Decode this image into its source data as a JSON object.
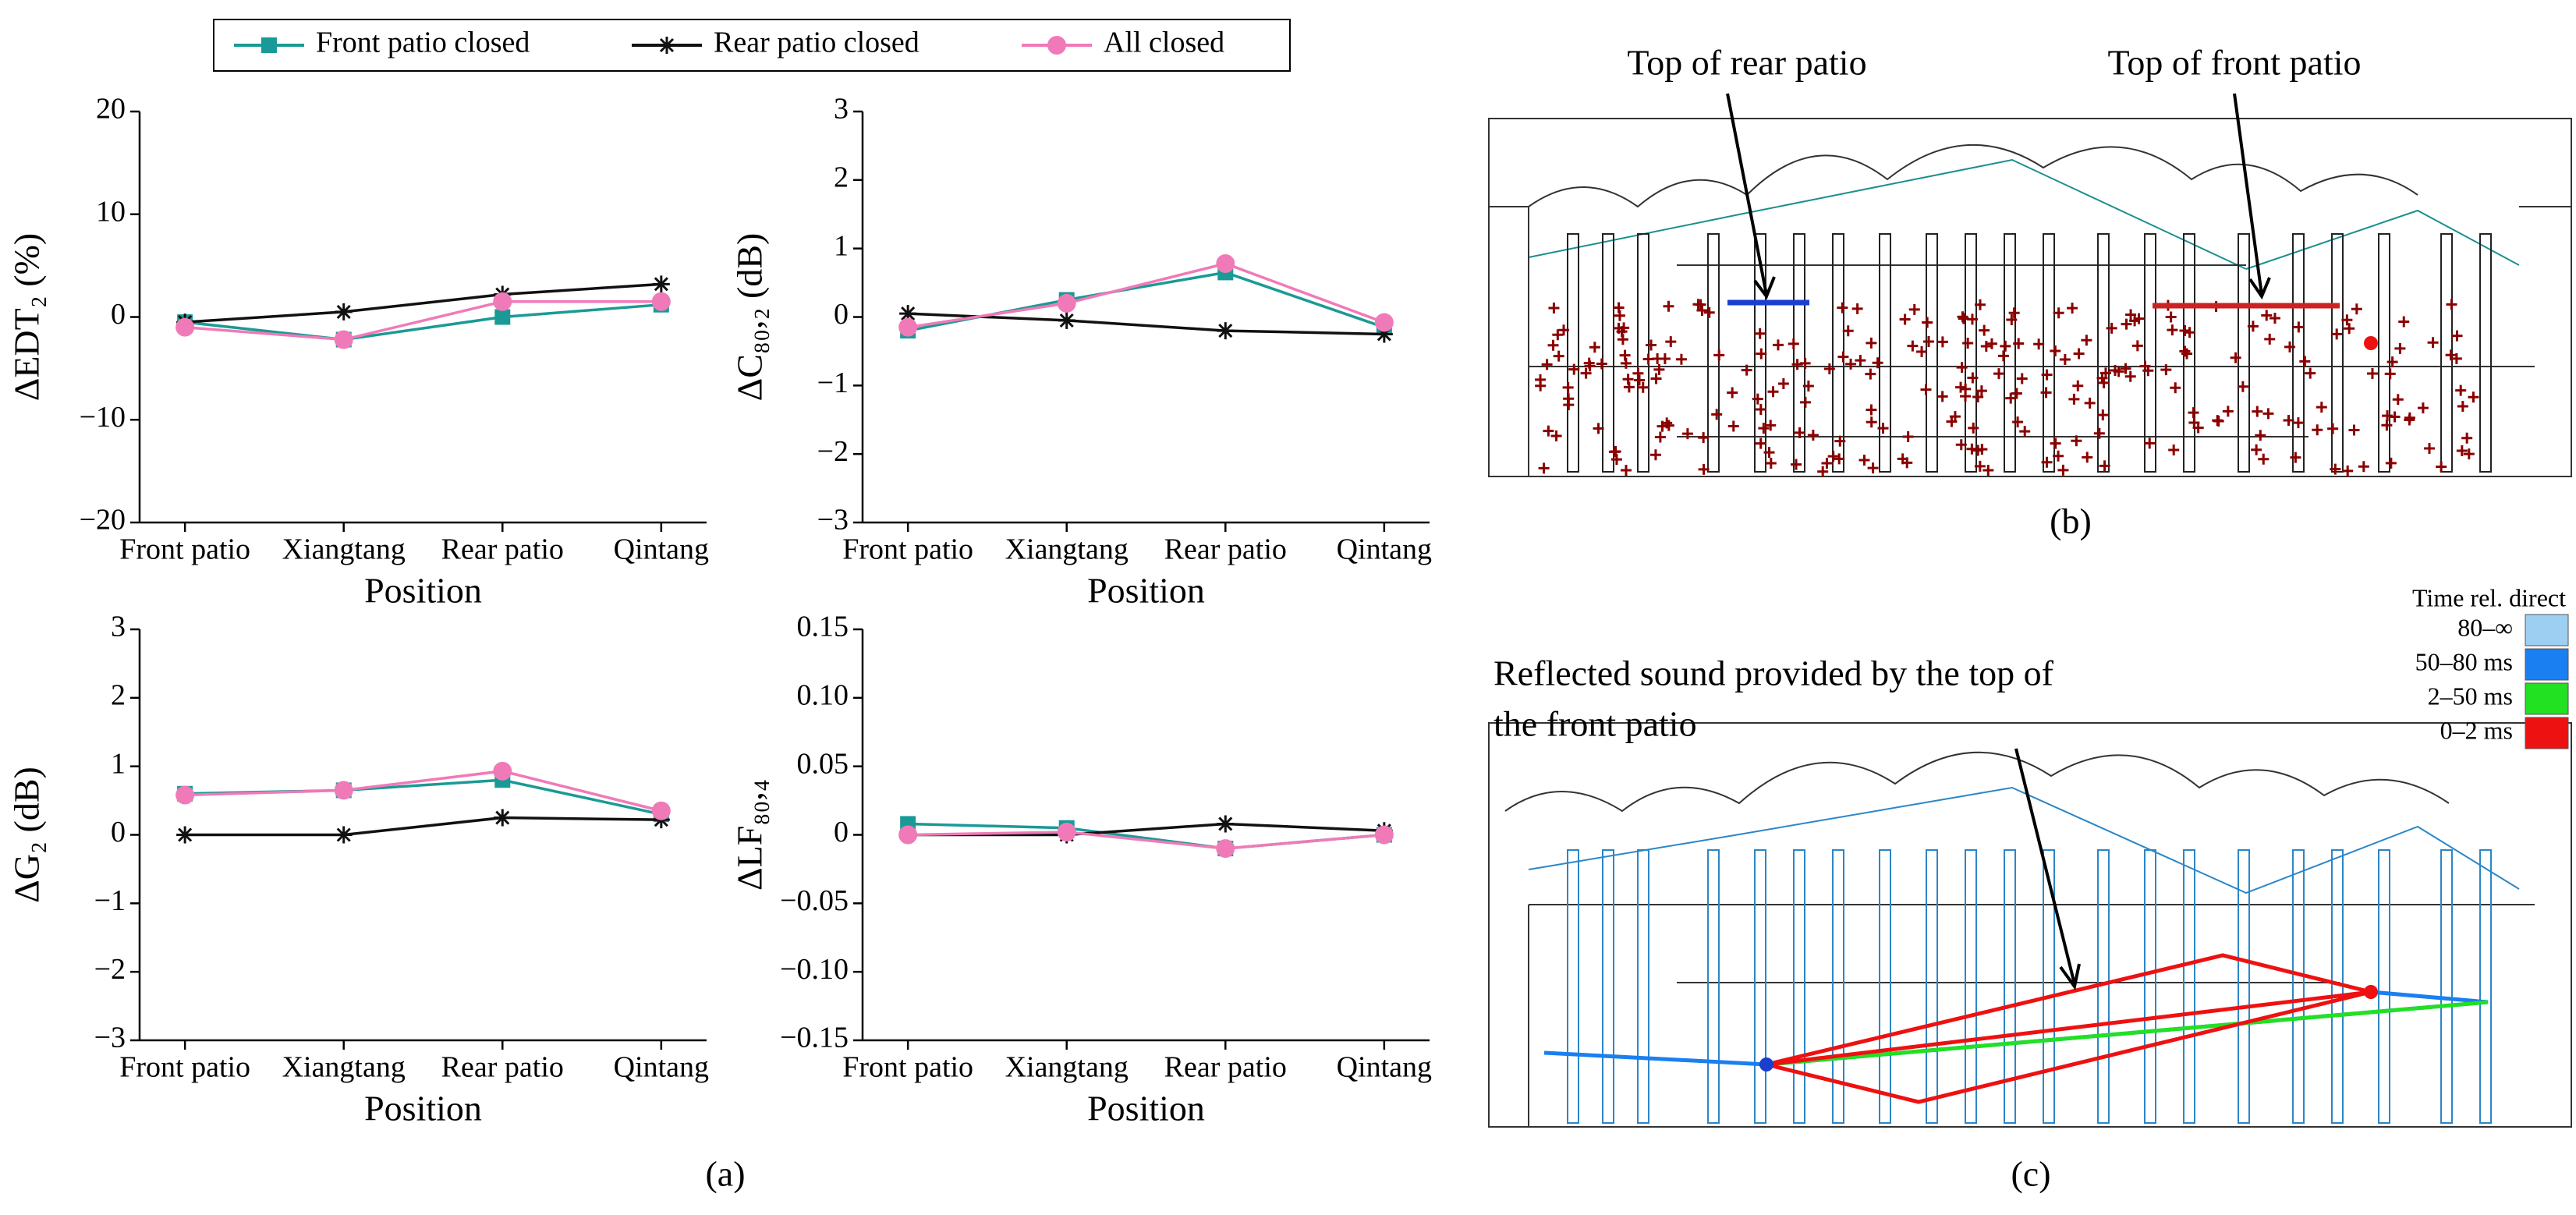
{
  "chart_data": [
    {
      "type": "line",
      "categories": [
        "Front patio",
        "Xiangtang",
        "Rear patio",
        "Qintang"
      ],
      "xlabel": "Position",
      "ylabel": "ΔEDT₂ (%)",
      "ylim": [
        -20,
        20
      ],
      "yticks": [
        {
          "value": -20,
          "label": "−20"
        },
        {
          "value": -10,
          "label": "−10"
        },
        0,
        10,
        20
      ],
      "series": [
        {
          "name": "Front patio closed",
          "color": "#1a9a96",
          "marker": "square",
          "values": [
            -0.5,
            -2.2,
            0,
            1.2
          ]
        },
        {
          "name": "Rear patio closed",
          "color": "#111111",
          "marker": "asterisk",
          "values": [
            -0.5,
            0.5,
            2.2,
            3.2
          ]
        },
        {
          "name": "All closed",
          "color": "#f07ab8",
          "marker": "circle",
          "values": [
            -1,
            -2.2,
            1.5,
            1.5
          ]
        }
      ]
    },
    {
      "type": "line",
      "categories": [
        "Front patio",
        "Xiangtang",
        "Rear patio",
        "Qintang"
      ],
      "xlabel": "Position",
      "ylabel": "ΔC₈₀,₂ (dB)",
      "ylim": [
        -3,
        3
      ],
      "yticks": [
        {
          "value": -3,
          "label": "−3"
        },
        {
          "value": -2,
          "label": "−2"
        },
        {
          "value": -1,
          "label": "−1"
        },
        0,
        1,
        2,
        3
      ],
      "series": [
        {
          "color": "#1a9a96",
          "marker": "square",
          "values": [
            -0.2,
            0.25,
            0.65,
            -0.15
          ]
        },
        {
          "color": "#111111",
          "marker": "asterisk",
          "values": [
            0.05,
            -0.05,
            -0.2,
            -0.25
          ]
        },
        {
          "color": "#f07ab8",
          "marker": "circle",
          "values": [
            -0.15,
            0.2,
            0.78,
            -0.08
          ]
        }
      ]
    },
    {
      "type": "line",
      "categories": [
        "Front patio",
        "Xiangtang",
        "Rear patio",
        "Qintang"
      ],
      "xlabel": "Position",
      "ylabel": "ΔG₂ (dB)",
      "ylim": [
        -3,
        3
      ],
      "yticks": [
        {
          "value": -3,
          "label": "−3"
        },
        {
          "value": -2,
          "label": "−2"
        },
        {
          "value": -1,
          "label": "−1"
        },
        0,
        1,
        2,
        3
      ],
      "series": [
        {
          "color": "#1a9a96",
          "marker": "square",
          "values": [
            0.6,
            0.65,
            0.8,
            0.3
          ]
        },
        {
          "color": "#111111",
          "marker": "asterisk",
          "values": [
            0,
            0,
            0.25,
            0.22
          ]
        },
        {
          "color": "#f07ab8",
          "marker": "circle",
          "values": [
            0.58,
            0.65,
            0.93,
            0.35
          ]
        }
      ]
    },
    {
      "type": "line",
      "categories": [
        "Front patio",
        "Xiangtang",
        "Rear patio",
        "Qintang"
      ],
      "xlabel": "Position",
      "ylabel": "ΔLF₈₀,₄",
      "ylim": [
        -0.15,
        0.15
      ],
      "yticks": [
        {
          "value": -0.15,
          "label": "−0.15"
        },
        {
          "value": -0.1,
          "label": "−0.10"
        },
        {
          "value": -0.05,
          "label": "−0.05"
        },
        0,
        0.05,
        {
          "value": 0.1,
          "label": "0.10"
        },
        0.15
      ],
      "series": [
        {
          "color": "#1a9a96",
          "marker": "square",
          "values": [
            0.008,
            0.005,
            -0.01,
            0
          ]
        },
        {
          "color": "#111111",
          "marker": "asterisk",
          "values": [
            0,
            0,
            0.008,
            0.003
          ]
        },
        {
          "color": "#f07ab8",
          "marker": "circle",
          "values": [
            0,
            0.002,
            -0.01,
            0
          ]
        }
      ]
    }
  ],
  "figure": {
    "panel_a": "(a)",
    "panel_b": "(b)",
    "panel_c": "(c)",
    "b_annotations": [
      "Top of rear patio",
      "Top of front patio"
    ],
    "c_annotation": [
      "Reflected sound provided by the top of",
      "the front patio"
    ],
    "time_legend": {
      "title": "Time rel. direct",
      "items": [
        {
          "label": "80–∞",
          "color": "#9ccff2"
        },
        {
          "label": "50–80 ms",
          "color": "#1a7ff0"
        },
        {
          "label": "2–50 ms",
          "color": "#22e022"
        },
        {
          "label": "0–2 ms",
          "color": "#ee1111"
        }
      ]
    }
  }
}
